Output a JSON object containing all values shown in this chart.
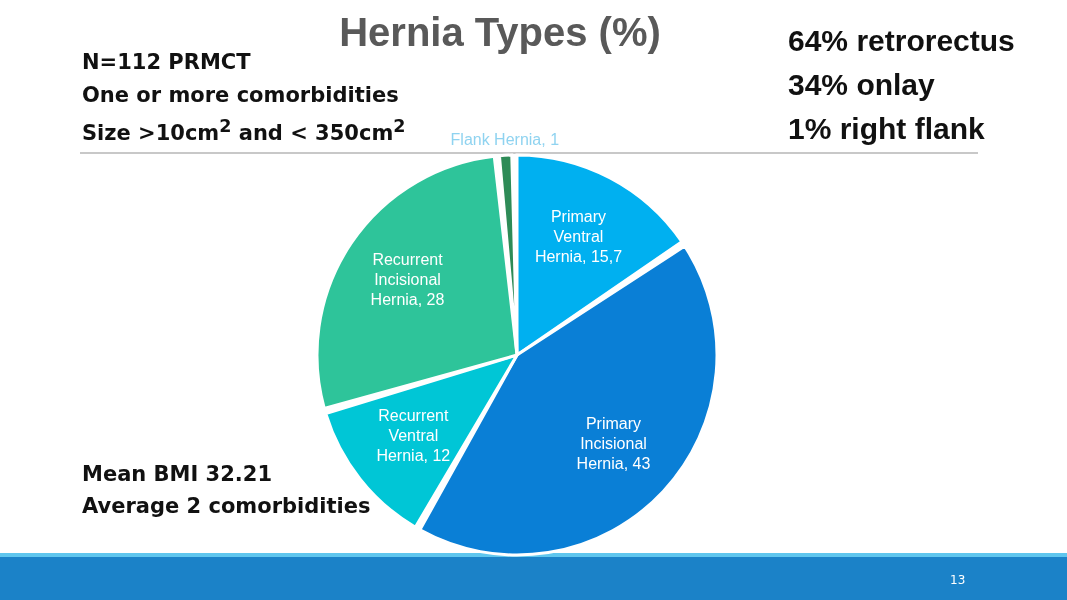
{
  "chart_data": {
    "type": "pie",
    "title": "Hernia Types (%)",
    "categories": [
      "Primary Ventral Hernia",
      "Primary Incisional Hernia",
      "Recurrent Ventral Hernia",
      "Recurrent Incisional Hernia",
      "Flank Hernia"
    ],
    "values": [
      15.7,
      43,
      12,
      28,
      1
    ],
    "value_labels": [
      "15,7",
      "43",
      "12",
      "28",
      "1"
    ],
    "colors": [
      "#00b0f0",
      "#0a7fd6",
      "#00c6d6",
      "#2ec49a",
      "#2e8b57"
    ],
    "legend": false,
    "annotations": [
      "N=112 PRMCT",
      "One or more comorbidities",
      "Size >10cm$^{2}$ and < 350cm$^{2}$",
      "64% retrorectus",
      "34% onlay",
      "1% right flank",
      "Mean BMI 32.21",
      "Average 2 comorbidities",
      "13"
    ]
  }
}
